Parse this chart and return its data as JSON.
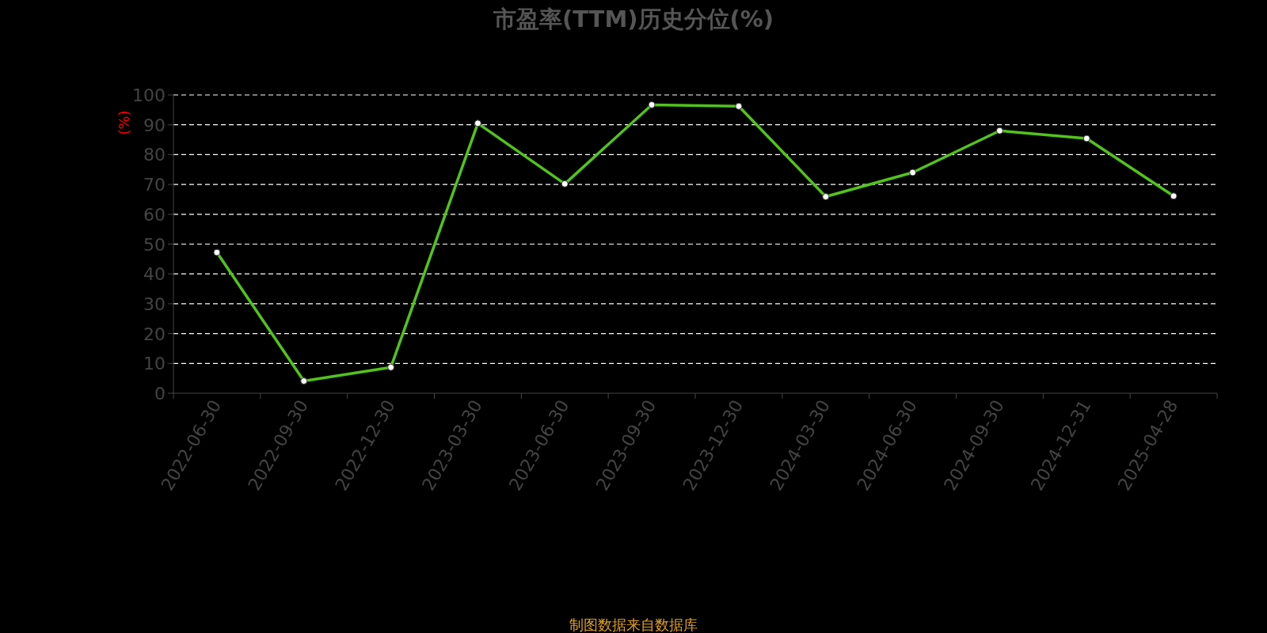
{
  "chart_data": {
    "type": "line",
    "title": "市盈率(TTM)历史分位(%)",
    "ylabel": "(%)",
    "categories": [
      "2022-06-30",
      "2022-09-30",
      "2022-12-30",
      "2023-03-30",
      "2023-06-30",
      "2023-09-30",
      "2023-12-30",
      "2024-03-30",
      "2024-06-30",
      "2024-09-30",
      "2024-12-31",
      "2025-04-28"
    ],
    "values": [
      47.2,
      4.1,
      8.7,
      90.5,
      70.2,
      96.7,
      96.2,
      65.9,
      74,
      88,
      85.4,
      66.1
    ],
    "color": "#52c41a",
    "ylim": [
      0,
      100
    ],
    "yticks": [
      0,
      10,
      20,
      30,
      40,
      50,
      60,
      70,
      80,
      90,
      100
    ],
    "grid": "y",
    "marker": "circle",
    "annotations": [
      "制图数据来自数据库"
    ]
  }
}
